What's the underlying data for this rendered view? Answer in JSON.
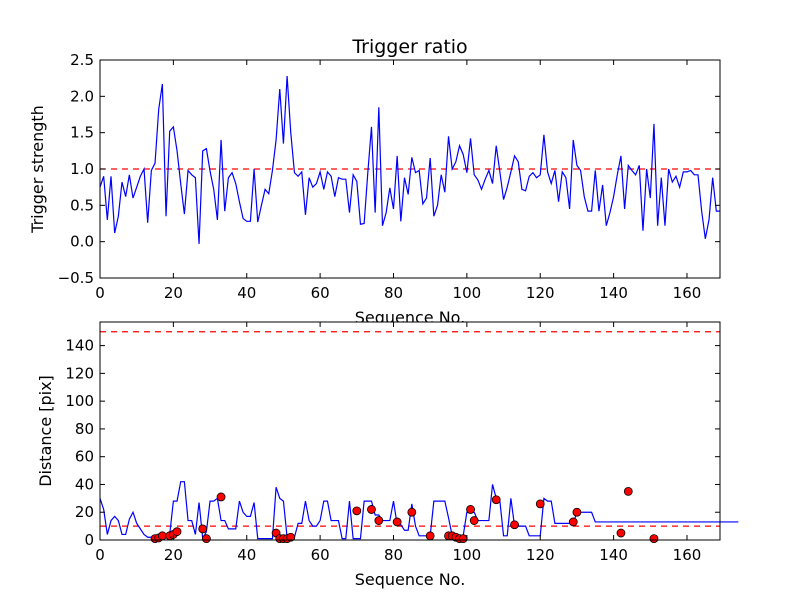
{
  "chart_data": [
    {
      "type": "line",
      "title": "Trigger ratio",
      "xlabel": "Sequence No.",
      "ylabel": "Trigger strength",
      "xlim": [
        0,
        169
      ],
      "ylim": [
        -0.5,
        2.5
      ],
      "xticks": [
        "0",
        "20",
        "40",
        "60",
        "80",
        "100",
        "120",
        "140",
        "160"
      ],
      "yticks": [
        "−0.5",
        "0.0",
        "0.5",
        "1.0",
        "1.5",
        "2.0",
        "2.5"
      ],
      "threshold": 1.0,
      "colors": {
        "line": "#0000ff",
        "threshold": "#ff0000"
      },
      "series": [
        {
          "name": "trigger strength",
          "values": [
            0.75,
            0.9,
            0.3,
            0.9,
            0.12,
            0.35,
            0.82,
            0.62,
            0.92,
            0.6,
            0.75,
            0.9,
            1.0,
            0.26,
            0.98,
            1.08,
            1.82,
            2.17,
            0.35,
            1.52,
            1.58,
            1.25,
            0.8,
            0.38,
            0.98,
            0.92,
            0.88,
            -0.03,
            1.25,
            1.28,
            0.97,
            0.72,
            0.3,
            1.4,
            0.42,
            0.88,
            0.95,
            0.8,
            0.55,
            0.32,
            0.28,
            0.28,
            1.0,
            0.27,
            0.5,
            0.72,
            0.66,
            0.98,
            1.4,
            2.1,
            1.35,
            2.28,
            1.5,
            0.95,
            0.9,
            0.96,
            0.37,
            0.88,
            0.75,
            0.8,
            0.96,
            0.72,
            0.96,
            0.9,
            0.62,
            0.88,
            0.86,
            0.86,
            0.4,
            0.92,
            0.83,
            0.24,
            0.25,
            0.95,
            1.58,
            0.4,
            1.85,
            0.22,
            0.4,
            0.74,
            0.45,
            1.18,
            0.28,
            0.88,
            0.65,
            1.16,
            0.95,
            0.98,
            0.52,
            0.6,
            1.15,
            0.35,
            0.5,
            0.92,
            0.68,
            1.45,
            1.0,
            1.1,
            1.32,
            1.2,
            0.95,
            1.42,
            0.92,
            0.85,
            0.72,
            0.86,
            0.98,
            0.8,
            1.32,
            0.96,
            0.58,
            0.75,
            0.96,
            1.18,
            1.1,
            0.72,
            0.7,
            0.9,
            0.95,
            0.88,
            0.92,
            1.47,
            0.96,
            0.8,
            0.98,
            0.55,
            0.96,
            0.88,
            0.45,
            1.4,
            1.05,
            0.98,
            0.62,
            0.42,
            0.42,
            0.98,
            0.42,
            0.78,
            0.22,
            0.4,
            0.62,
            0.92,
            1.18,
            0.45,
            1.05,
            0.98,
            0.92,
            1.05,
            0.15,
            1.0,
            0.6,
            1.62,
            0.22,
            0.88,
            0.22,
            1.0,
            0.82,
            0.9,
            0.75,
            0.96,
            0.96,
            0.98,
            0.92,
            0.92,
            0.42,
            0.04,
            0.3,
            0.88,
            0.42,
            0.42
          ]
        }
      ]
    },
    {
      "type": "line",
      "title": "",
      "xlabel": "Sequence No.",
      "ylabel": "Distance [pix]",
      "xlim": [
        0,
        169
      ],
      "ylim": [
        0,
        157
      ],
      "xticks": [
        "0",
        "20",
        "40",
        "60",
        "80",
        "100",
        "120",
        "140",
        "160"
      ],
      "yticks": [
        "0",
        "20",
        "40",
        "60",
        "80",
        "100",
        "120",
        "140"
      ],
      "thresholds": [
        10,
        150
      ],
      "colors": {
        "line": "#0000ff",
        "threshold": "#ff0000",
        "marker": "#ff0000",
        "marker_edge": "#000000"
      },
      "series": [
        {
          "name": "distance",
          "values": [
            30,
            22,
            4,
            14,
            17,
            14,
            4,
            4,
            15,
            20,
            12,
            8,
            4,
            2,
            2,
            3,
            3,
            2,
            3,
            4,
            28,
            28,
            42,
            42,
            14,
            14,
            4,
            27,
            1,
            6,
            28,
            28,
            30,
            14,
            14,
            8,
            8,
            8,
            28,
            20,
            17,
            17,
            27,
            1,
            1,
            1,
            1,
            1,
            38,
            30,
            28,
            2,
            2,
            2,
            12,
            12,
            28,
            14,
            10,
            10,
            14,
            28,
            28,
            14,
            14,
            14,
            1,
            1,
            28,
            1,
            1,
            1,
            28,
            28,
            28,
            18,
            18,
            14,
            14,
            14,
            28,
            11,
            11,
            7,
            7,
            26,
            10,
            3,
            3,
            3,
            3,
            28,
            28,
            28,
            28,
            16,
            3,
            3,
            3,
            3,
            20,
            20,
            20,
            14,
            14,
            14,
            14,
            40,
            30,
            28,
            3,
            3,
            30,
            10,
            10,
            10,
            10,
            3,
            3,
            3,
            3,
            30,
            28,
            28,
            12,
            12,
            12,
            12,
            12,
            12,
            20,
            20,
            20,
            20,
            20,
            13,
            13,
            13,
            13,
            13,
            13,
            13,
            13,
            13,
            13,
            13,
            13,
            13,
            13,
            13,
            13,
            13,
            13,
            13,
            13,
            13,
            13,
            13,
            13,
            13,
            13,
            13,
            13,
            13,
            13,
            13,
            13,
            13,
            13,
            13,
            13,
            13,
            13,
            13,
            13
          ]
        },
        {
          "name": "triggered points",
          "points": [
            [
              15,
              1
            ],
            [
              16,
              1.5
            ],
            [
              17,
              3
            ],
            [
              19,
              3
            ],
            [
              20,
              4
            ],
            [
              21,
              6
            ],
            [
              28,
              8
            ],
            [
              29,
              1
            ],
            [
              33,
              31
            ],
            [
              48,
              5
            ],
            [
              49,
              1
            ],
            [
              50,
              1
            ],
            [
              51,
              1
            ],
            [
              52,
              2
            ],
            [
              70,
              21
            ],
            [
              74,
              22
            ],
            [
              76,
              14
            ],
            [
              81,
              13
            ],
            [
              85,
              20
            ],
            [
              90,
              3
            ],
            [
              95,
              3
            ],
            [
              96,
              3
            ],
            [
              97,
              2
            ],
            [
              98,
              1
            ],
            [
              99,
              1
            ],
            [
              101,
              22
            ],
            [
              102,
              14
            ],
            [
              108,
              29
            ],
            [
              113,
              11
            ],
            [
              120,
              26
            ],
            [
              129,
              13
            ],
            [
              130,
              20
            ],
            [
              142,
              5
            ],
            [
              144,
              35
            ],
            [
              151,
              1
            ]
          ]
        }
      ]
    }
  ]
}
